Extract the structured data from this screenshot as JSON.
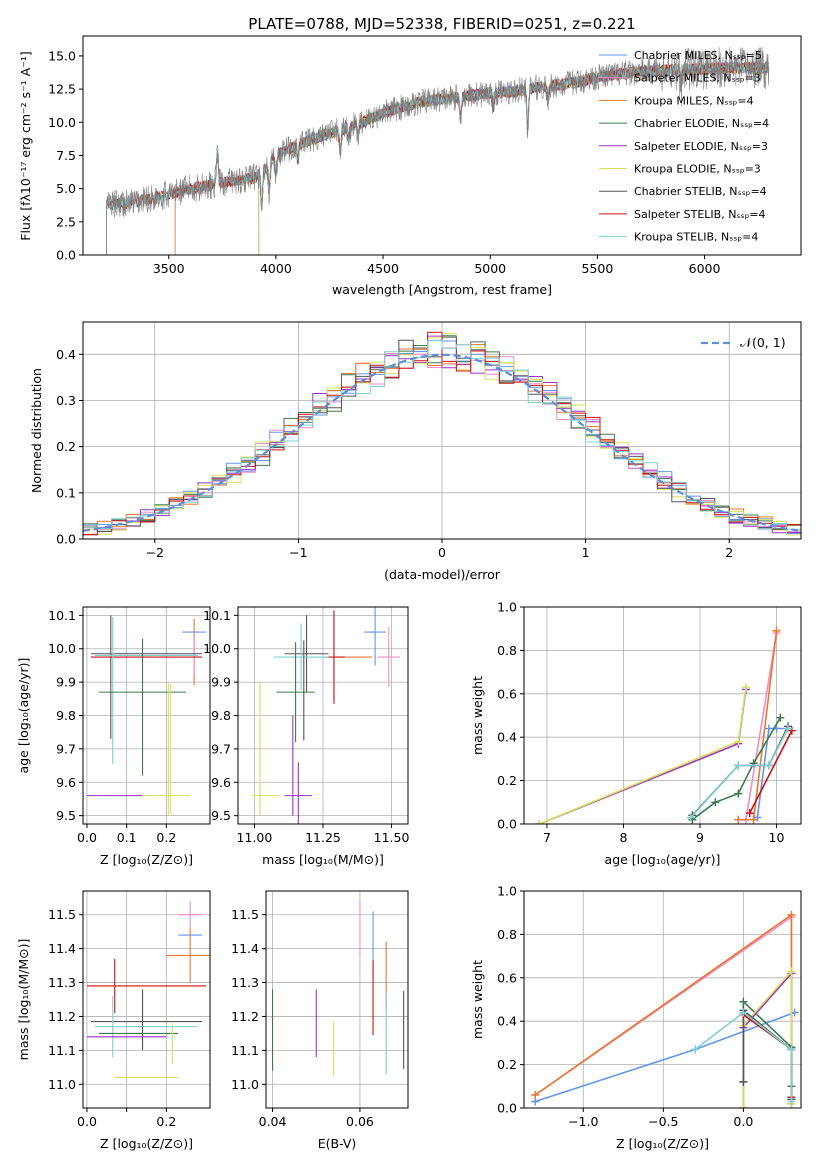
{
  "figure": {
    "title": "PLATE=0788, MJD=52338, FIBERID=0251, z=0.221"
  },
  "colors": {
    "Chabrier MILES": "#6495ED",
    "Salpeter MILES": "#F08CC8",
    "Kroupa MILES": "#E8782E",
    "Chabrier ELODIE": "#3E7A4E",
    "Salpeter ELODIE": "#9933CC",
    "Kroupa ELODIE": "#D8E05A",
    "Chabrier STELIB": "#555555",
    "Salpeter STELIB": "#CC1111",
    "Kroupa STELIB": "#7FD0D0",
    "gaussian": "#5B8FD9",
    "data_spectrum": "#808080"
  },
  "chart_data": [
    {
      "id": "spectrum",
      "type": "line",
      "title": "PLATE=0788, MJD=52338, FIBERID=0251, z=0.221",
      "xlabel": "wavelength [Angstrom, rest frame]",
      "ylabel": "Flux [fλ10⁻¹⁷ erg cm⁻² s⁻¹ A⁻¹]",
      "xlim": [
        3100,
        6450
      ],
      "ylim": [
        0,
        16.5
      ],
      "xticks": [
        3500,
        4000,
        4500,
        5000,
        5500,
        6000
      ],
      "yticks": [
        0.0,
        2.5,
        5.0,
        7.5,
        10.0,
        12.5,
        15.0
      ],
      "grid": false,
      "legend_position": "upper right",
      "series": [
        {
          "name": "Chabrier MILES, N_SSP=5",
          "start": 3530
        },
        {
          "name": "Salpeter MILES, N_SSP=3",
          "start": 3530
        },
        {
          "name": "Kroupa MILES, N_SSP=4",
          "start": 3530
        },
        {
          "name": "Chabrier ELODIE, N_SSP=4",
          "start": 3920
        },
        {
          "name": "Salpeter ELODIE, N_SSP=3",
          "start": 3920
        },
        {
          "name": "Kroupa ELODIE, N_SSP=3",
          "start": 3920
        },
        {
          "name": "Chabrier STELIB, N_SSP=4",
          "start": 3210
        },
        {
          "name": "Salpeter STELIB, N_SSP=4",
          "start": 3210
        },
        {
          "name": "Kroupa STELIB, N_SSP=4",
          "start": 3210
        }
      ],
      "continuum_anchors": {
        "x": [
          3210,
          3300,
          3400,
          3500,
          3600,
          3700,
          3800,
          3900,
          3950,
          4000,
          4100,
          4200,
          4300,
          4400,
          4500,
          4600,
          4700,
          4800,
          4900,
          5000,
          5100,
          5200,
          5300,
          5400,
          5500,
          5600,
          5700,
          5800,
          5900,
          6000,
          6100,
          6200,
          6300
        ],
        "y": [
          3.8,
          3.9,
          4.2,
          4.6,
          5.0,
          5.3,
          5.6,
          5.8,
          6.5,
          7.5,
          8.3,
          8.9,
          9.4,
          10.0,
          10.7,
          11.2,
          11.6,
          11.8,
          12.0,
          12.2,
          12.3,
          12.6,
          12.8,
          13.0,
          13.4,
          13.6,
          13.8,
          13.9,
          14.0,
          14.0,
          14.1,
          14.1,
          14.1
        ]
      }
    },
    {
      "id": "residuals",
      "type": "line",
      "xlabel": "(data-model)/error",
      "ylabel": "Normed distribution",
      "xlim": [
        -2.5,
        2.5
      ],
      "ylim": [
        0,
        0.47
      ],
      "xticks": [
        -2,
        -1,
        0,
        1,
        2
      ],
      "yticks": [
        0.0,
        0.1,
        0.2,
        0.3,
        0.4
      ],
      "grid": true,
      "legend": "𝒩(0, 1)",
      "legend_position": "upper right",
      "bin_width": 0.1,
      "series_names": [
        "Chabrier MILES",
        "Salpeter MILES",
        "Kroupa MILES",
        "Chabrier ELODIE",
        "Salpeter ELODIE",
        "Kroupa ELODIE",
        "Chabrier STELIB",
        "Salpeter STELIB",
        "Kroupa STELIB"
      ],
      "reference_curve": "gaussian N(0,1)"
    },
    {
      "id": "age_vs_Z",
      "type": "scatter",
      "xlabel": "Z [log₁₀(Z/Z⊙)]",
      "ylabel": "age  [log₁₀(age/yr)]",
      "xlim": [
        -0.01,
        0.31
      ],
      "ylim": [
        9.475,
        10.125
      ],
      "xticks": [
        0.0,
        0.1,
        0.2
      ],
      "xtick_labels": [
        "0.0",
        "0.1",
        "0.2"
      ],
      "yticks": [
        9.5,
        9.6,
        9.7,
        9.8,
        9.9,
        10.0,
        10.1
      ],
      "grid": true,
      "points": [
        {
          "s": "Chabrier MILES",
          "x": 0.27,
          "y": 10.05,
          "xerr": 0.03,
          "yerr": 0
        },
        {
          "s": "Kroupa MILES",
          "x": 0.27,
          "y": 9.99,
          "xerr": 0,
          "yerr": 0.1
        },
        {
          "s": "Salpeter MILES",
          "x": 0.27,
          "y": 9.98,
          "xerr": 0,
          "yerr": 0.06
        },
        {
          "s": "Chabrier STELIB",
          "x": 0.15,
          "y": 9.985,
          "xerr": 0.14,
          "yerr": 0
        },
        {
          "s": "Chabrier STELIB",
          "x": 0.06,
          "y": 9.915,
          "xerr": 0,
          "yerr": 0.185
        },
        {
          "s": "Salpeter STELIB",
          "x": 0.15,
          "y": 9.975,
          "xerr": 0.14,
          "yerr": 0
        },
        {
          "s": "Kroupa STELIB",
          "x": 0.065,
          "y": 9.875,
          "xerr": 0,
          "yerr": 0.22
        },
        {
          "s": "Kroupa STELIB",
          "x": 0.15,
          "y": 9.98,
          "xerr": 0.13,
          "yerr": 0
        },
        {
          "s": "Chabrier ELODIE",
          "x": 0.14,
          "y": 9.87,
          "xerr": 0.11,
          "yerr": 0
        },
        {
          "s": "Chabrier ELODIE",
          "x": 0.14,
          "y": 9.825,
          "xerr": 0,
          "yerr": 0.205
        },
        {
          "s": "Kroupa ELODIE",
          "x": 0.205,
          "y": 9.7,
          "xerr": 0,
          "yerr": 0.2
        },
        {
          "s": "Kroupa ELODIE",
          "x": 0.15,
          "y": 9.56,
          "xerr": 0.11,
          "yerr": 0
        },
        {
          "s": "Salpeter ELODIE",
          "x": 0.07,
          "y": 9.56,
          "xerr": 0.07,
          "yerr": 0
        },
        {
          "s": "Kroupa ELODIE",
          "x": 0.21,
          "y": 9.7,
          "xerr": 0,
          "yerr": 0.195
        }
      ]
    },
    {
      "id": "age_vs_mass",
      "type": "scatter",
      "xlabel": "mass [log₁₀(M/M⊙)]",
      "xlim": [
        10.94,
        11.56
      ],
      "ylim": [
        9.475,
        10.125
      ],
      "xticks": [
        11.0,
        11.25,
        11.5
      ],
      "xtick_labels": [
        "11.00",
        "11.25",
        "11.50"
      ],
      "yticks": [
        9.5,
        9.6,
        9.7,
        9.8,
        9.9,
        10.0,
        10.1
      ],
      "grid": true,
      "points": [
        {
          "s": "Chabrier MILES",
          "x": 11.44,
          "y": 10.05,
          "xerr": 0.04,
          "yerr": 0.1
        },
        {
          "s": "Salpeter MILES",
          "x": 11.49,
          "y": 9.975,
          "xerr": 0.04,
          "yerr": 0.09
        },
        {
          "s": "Kroupa MILES",
          "x": 11.38,
          "y": 9.975,
          "xerr": 0.05,
          "yerr": 0
        },
        {
          "s": "Salpeter STELIB",
          "x": 11.29,
          "y": 9.975,
          "xerr": 0.04,
          "yerr": 0.14
        },
        {
          "s": "Chabrier STELIB",
          "x": 11.19,
          "y": 9.985,
          "xerr": 0.08,
          "yerr": 0.115
        },
        {
          "s": "Kroupa STELIB",
          "x": 11.17,
          "y": 9.975,
          "xerr": 0.1,
          "yerr": 0.1
        },
        {
          "s": "Chabrier ELODIE",
          "x": 11.15,
          "y": 9.87,
          "xerr": 0.07,
          "yerr": 0.15
        },
        {
          "s": "Chabrier STELIB",
          "x": 11.18,
          "y": 9.875,
          "xerr": 0,
          "yerr": 0.15
        },
        {
          "s": "Salpeter ELODIE",
          "x": 11.16,
          "y": 9.56,
          "xerr": 0.05,
          "yerr": 0.1
        },
        {
          "s": "Salpeter ELODIE",
          "x": 11.14,
          "y": 9.65,
          "xerr": 0,
          "yerr": 0.15
        },
        {
          "s": "Kroupa ELODIE",
          "x": 11.02,
          "y": 9.7,
          "xerr": 0,
          "yerr": 0.2
        },
        {
          "s": "Kroupa ELODIE",
          "x": 11.04,
          "y": 9.56,
          "xerr": 0.05,
          "yerr": 0
        }
      ]
    },
    {
      "id": "weight_vs_age",
      "type": "line",
      "xlabel": "age  [log₁₀(age/yr)]",
      "ylabel": "mass weight",
      "xlim": [
        6.7,
        10.32
      ],
      "ylim": [
        0.0,
        1.0
      ],
      "xticks": [
        7,
        8,
        9,
        10
      ],
      "yticks": [
        0.0,
        0.2,
        0.4,
        0.6,
        0.8,
        1.0
      ],
      "grid": true,
      "series": [
        {
          "s": "Chabrier MILES",
          "x": [
            9.75,
            9.9,
            10.0,
            10.15
          ],
          "y": [
            0.03,
            0.44,
            0.44,
            0.44
          ]
        },
        {
          "s": "Salpeter MILES",
          "x": [
            9.6,
            10.0
          ],
          "y": [
            0.02,
            0.88
          ]
        },
        {
          "s": "Kroupa MILES",
          "x": [
            9.5,
            9.7,
            10.0
          ],
          "y": [
            0.02,
            0.02,
            0.89
          ]
        },
        {
          "s": "Chabrier ELODIE",
          "x": [
            8.9,
            9.2,
            9.5,
            9.7,
            10.05
          ],
          "y": [
            0.02,
            0.1,
            0.14,
            0.28,
            0.49
          ]
        },
        {
          "s": "Salpeter ELODIE",
          "x": [
            6.9,
            9.5,
            9.6
          ],
          "y": [
            0.0,
            0.37,
            0.62
          ]
        },
        {
          "s": "Kroupa ELODIE",
          "x": [
            6.9,
            9.5,
            9.6
          ],
          "y": [
            0.0,
            0.38,
            0.63
          ]
        },
        {
          "s": "Chabrier STELIB",
          "x": [
            8.9,
            9.5,
            9.9,
            10.15
          ],
          "y": [
            0.04,
            0.27,
            0.27,
            0.45
          ]
        },
        {
          "s": "Salpeter STELIB",
          "x": [
            9.65,
            10.2
          ],
          "y": [
            0.05,
            0.43
          ]
        },
        {
          "s": "Kroupa STELIB",
          "x": [
            8.88,
            9.5,
            9.9,
            10.15
          ],
          "y": [
            0.03,
            0.27,
            0.27,
            0.44
          ]
        }
      ]
    },
    {
      "id": "mass_vs_Z",
      "type": "scatter",
      "xlabel": "Z [log₁₀(Z/Z⊙)]",
      "ylabel": "mass [log₁₀(M/M⊙)]",
      "xlim": [
        -0.01,
        0.31
      ],
      "ylim": [
        10.93,
        11.57
      ],
      "xticks": [
        0.0,
        0.1,
        0.2
      ],
      "xtick_labels": [
        "0.0",
        "0.2"
      ],
      "xtick_label_values": [
        0.0,
        0.2
      ],
      "yticks": [
        11.0,
        11.1,
        11.2,
        11.3,
        11.4,
        11.5
      ],
      "grid": true,
      "points": [
        {
          "s": "Salpeter MILES",
          "x": 0.26,
          "y": 11.5,
          "xerr": 0.03,
          "yerr": 0.04
        },
        {
          "s": "Chabrier MILES",
          "x": 0.26,
          "y": 11.44,
          "xerr": 0.03,
          "yerr": 0
        },
        {
          "s": "Kroupa MILES",
          "x": 0.26,
          "y": 11.38,
          "xerr": 0.06,
          "yerr": 0.08
        },
        {
          "s": "Salpeter STELIB",
          "x": 0.15,
          "y": 11.29,
          "xerr": 0.15,
          "yerr": 0
        },
        {
          "s": "Salpeter STELIB",
          "x": 0.07,
          "y": 11.29,
          "xerr": 0,
          "yerr": 0.08
        },
        {
          "s": "Chabrier STELIB",
          "x": 0.15,
          "y": 11.185,
          "xerr": 0.14,
          "yerr": 0
        },
        {
          "s": "Chabrier STELIB",
          "x": 0.14,
          "y": 11.19,
          "xerr": 0,
          "yerr": 0.09
        },
        {
          "s": "Kroupa STELIB",
          "x": 0.15,
          "y": 11.17,
          "xerr": 0.13,
          "yerr": 0
        },
        {
          "s": "Kroupa STELIB",
          "x": 0.065,
          "y": 11.17,
          "xerr": 0,
          "yerr": 0.09
        },
        {
          "s": "Chabrier ELODIE",
          "x": 0.13,
          "y": 11.15,
          "xerr": 0.1,
          "yerr": 0
        },
        {
          "s": "Salpeter ELODIE",
          "x": 0.1,
          "y": 11.14,
          "xerr": 0.1,
          "yerr": 0
        },
        {
          "s": "Kroupa ELODIE",
          "x": 0.15,
          "y": 11.02,
          "xerr": 0.08,
          "yerr": 0
        },
        {
          "s": "Kroupa ELODIE",
          "x": 0.215,
          "y": 11.12,
          "xerr": 0,
          "yerr": 0.06
        }
      ]
    },
    {
      "id": "mass_vs_ebv",
      "type": "scatter",
      "xlabel": "E(B-V)",
      "xlim": [
        0.0385,
        0.071
      ],
      "ylim": [
        10.93,
        11.57
      ],
      "xticks": [
        0.04,
        0.06
      ],
      "xtick_labels": [
        "0.04",
        "0.06"
      ],
      "yticks": [
        11.0,
        11.1,
        11.2,
        11.3,
        11.4,
        11.5
      ],
      "grid": true,
      "points": [
        {
          "s": "Chabrier ELODIE",
          "x": 0.04,
          "y": 11.16,
          "yerr": 0.12
        },
        {
          "s": "Salpeter ELODIE",
          "x": 0.05,
          "y": 11.18,
          "yerr": 0.1
        },
        {
          "s": "Kroupa ELODIE",
          "x": 0.054,
          "y": 11.105,
          "yerr": 0.08
        },
        {
          "s": "Salpeter MILES",
          "x": 0.06,
          "y": 11.46,
          "yerr": 0.085
        },
        {
          "s": "Chabrier MILES",
          "x": 0.063,
          "y": 11.42,
          "yerr": 0.09
        },
        {
          "s": "Salpeter STELIB",
          "x": 0.063,
          "y": 11.255,
          "yerr": 0.11
        },
        {
          "s": "Kroupa MILES",
          "x": 0.066,
          "y": 11.32,
          "yerr": 0.1
        },
        {
          "s": "Kroupa STELIB",
          "x": 0.066,
          "y": 11.15,
          "yerr": 0.12
        },
        {
          "s": "Chabrier STELIB",
          "x": 0.07,
          "y": 11.16,
          "yerr": 0.115
        }
      ]
    },
    {
      "id": "weight_vs_Z",
      "type": "line",
      "xlabel": "Z [log₁₀(Z/Z⊙)]",
      "ylabel": "mass weight",
      "xlim": [
        -1.37,
        0.36
      ],
      "ylim": [
        0.0,
        1.0
      ],
      "xticks": [
        -1.0,
        -0.5,
        0.0
      ],
      "xtick_labels": [
        "−1.0",
        "−0.5",
        "0.0"
      ],
      "yticks": [
        0.0,
        0.2,
        0.4,
        0.6,
        0.8,
        1.0
      ],
      "grid": true,
      "series": [
        {
          "s": "Chabrier MILES",
          "x": [
            -1.3,
            -0.3,
            0.32
          ],
          "y": [
            0.03,
            0.27,
            0.44
          ]
        },
        {
          "s": "Salpeter MILES",
          "x": [
            -1.3,
            0.3,
            0.3
          ],
          "y": [
            0.06,
            0.88,
            0.02
          ]
        },
        {
          "s": "Kroupa MILES",
          "x": [
            -1.3,
            0.3,
            0.3
          ],
          "y": [
            0.06,
            0.89,
            0.02
          ]
        },
        {
          "s": "Chabrier ELODIE",
          "x": [
            0.0,
            0.0,
            0.3,
            0.3
          ],
          "y": [
            0.12,
            0.49,
            0.28,
            0.1
          ]
        },
        {
          "s": "Salpeter ELODIE",
          "x": [
            0.0,
            0.0,
            0.3,
            0.3
          ],
          "y": [
            0.0,
            0.37,
            0.62,
            0.02
          ]
        },
        {
          "s": "Kroupa ELODIE",
          "x": [
            0.0,
            0.0,
            0.3,
            0.3
          ],
          "y": [
            0.0,
            0.38,
            0.63,
            0.02
          ]
        },
        {
          "s": "Chabrier STELIB",
          "x": [
            0.0,
            0.0,
            0.3,
            0.3
          ],
          "y": [
            0.12,
            0.45,
            0.27,
            0.04
          ]
        },
        {
          "s": "Salpeter STELIB",
          "x": [
            0.0,
            0.3,
            0.3
          ],
          "y": [
            0.43,
            0.27,
            0.05
          ]
        },
        {
          "s": "Kroupa STELIB",
          "x": [
            -0.3,
            0.0,
            0.3,
            0.3
          ],
          "y": [
            0.27,
            0.44,
            0.27,
            0.03
          ]
        }
      ]
    }
  ]
}
